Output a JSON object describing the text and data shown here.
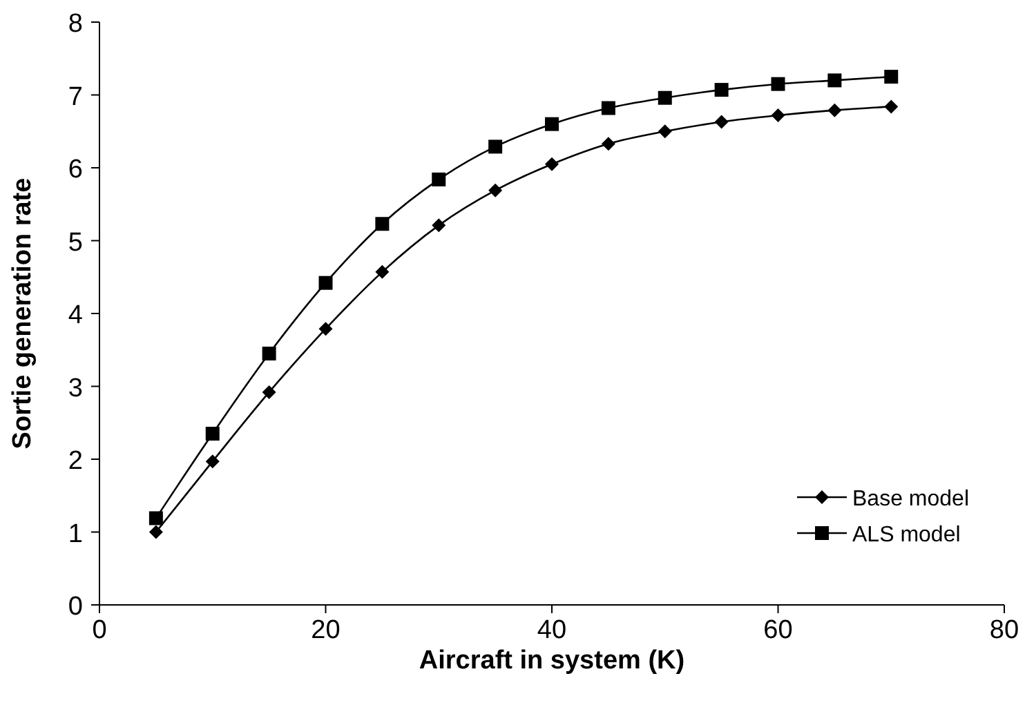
{
  "chart_data": {
    "type": "line",
    "xlabel": "Aircraft in system (K)",
    "ylabel": "Sortie generation rate",
    "x": [
      5,
      10,
      15,
      20,
      25,
      30,
      35,
      40,
      45,
      50,
      55,
      60,
      65,
      70
    ],
    "series": [
      {
        "name": "Base model",
        "color": "#000000",
        "marker": "diamond",
        "values": [
          1.0,
          1.97,
          2.92,
          3.79,
          4.57,
          5.21,
          5.69,
          6.05,
          6.33,
          6.5,
          6.63,
          6.72,
          6.79,
          6.84
        ]
      },
      {
        "name": "ALS model",
        "color": "#000000",
        "marker": "square",
        "values": [
          1.19,
          2.35,
          3.45,
          4.42,
          5.23,
          5.84,
          6.29,
          6.6,
          6.82,
          6.96,
          7.07,
          7.15,
          7.2,
          7.25
        ]
      }
    ],
    "xlim": [
      0,
      80
    ],
    "xticks": [
      0,
      20,
      40,
      60,
      80
    ],
    "ylim": [
      0,
      8
    ],
    "yticks": [
      0,
      1,
      2,
      3,
      4,
      5,
      6,
      7,
      8
    ],
    "grid": false,
    "legend": "bottom right",
    "line_style": "solid"
  }
}
